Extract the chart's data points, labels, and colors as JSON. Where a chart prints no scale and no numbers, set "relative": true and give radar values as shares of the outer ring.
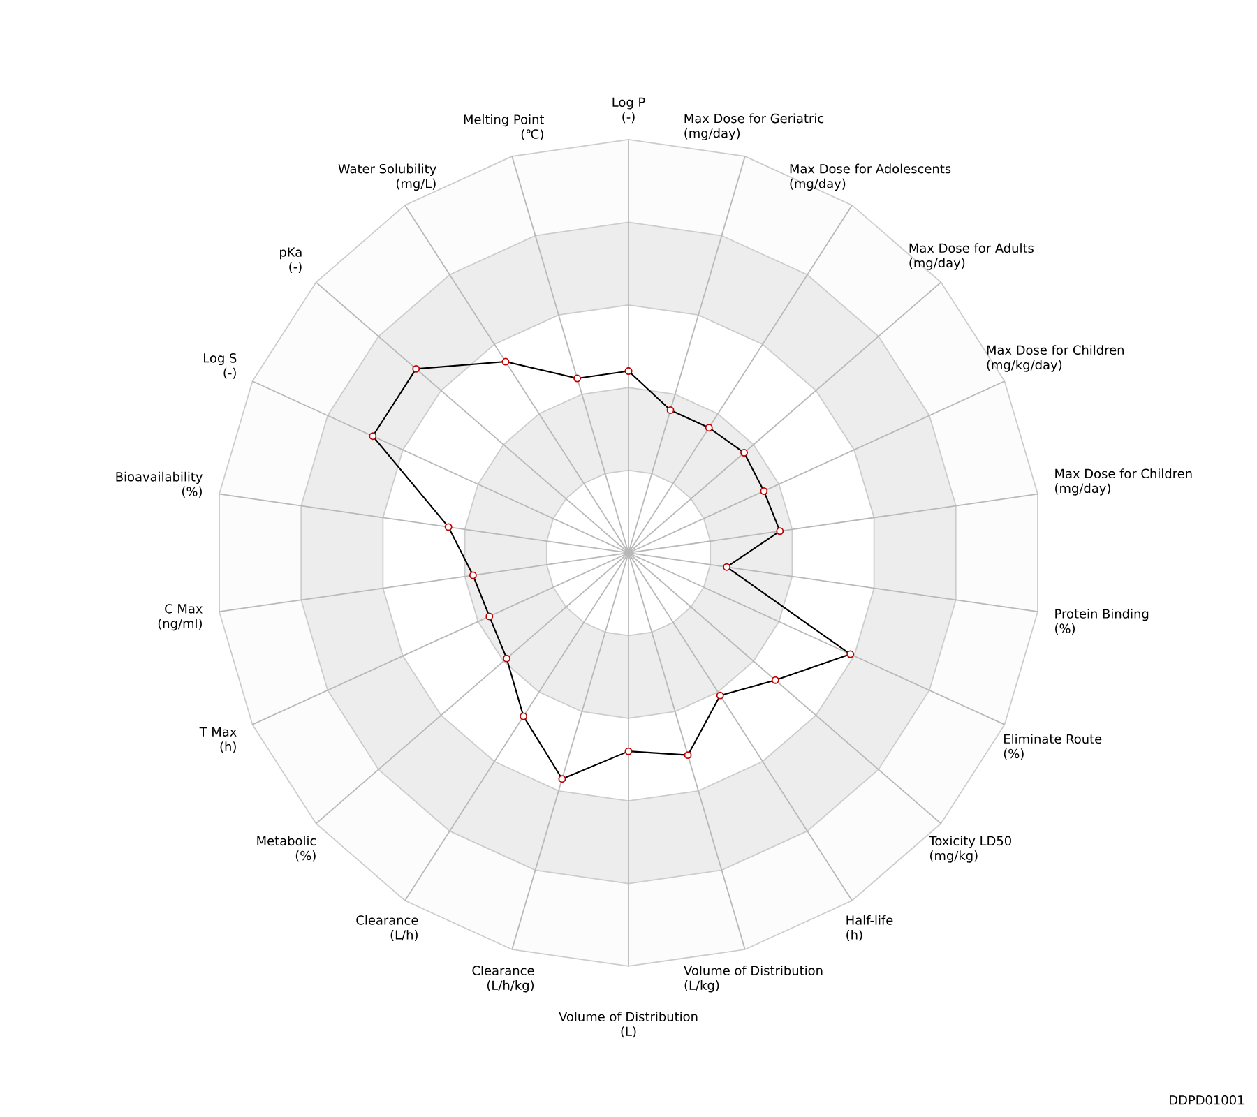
{
  "chart_data": {
    "type": "radar",
    "relative": true,
    "grid": true,
    "marker": "circle",
    "categories": [
      "Log P (-)",
      "Max Dose for Geriatric (mg/day)",
      "Max Dose for Adolescents (mg/day)",
      "Max Dose for Adults (mg/day)",
      "Max Dose for Children (mg/kg/day)",
      "Max Dose for Children (mg/day)",
      "Protein Binding (%)",
      "Eliminate Route (%)",
      "Toxicity LD50 (mg/kg)",
      "Half-life (h)",
      "Volume of Distribution (L/kg)",
      "Volume of Distribution (L)",
      "Clearance (L/h/kg)",
      "Clearance (L/h)",
      "Metabolic (%)",
      "T Max (h)",
      "C Max (ng/ml)",
      "Bioavailability (%)",
      "Log S (-)",
      "pKa (-)",
      "Water Solubility (mg/L)",
      "Melting Point (℃)"
    ],
    "series": [
      {
        "color": "#000000",
        "values": [
          0.44,
          0.36,
          0.36,
          0.37,
          0.36,
          0.37,
          0.24,
          0.59,
          0.47,
          0.41,
          0.51,
          0.48,
          0.57,
          0.47,
          0.39,
          0.37,
          0.38,
          0.44,
          0.68,
          0.68,
          0.55,
          0.44
        ]
      }
    ],
    "annotations": [
      "DDPD01001"
    ]
  }
}
